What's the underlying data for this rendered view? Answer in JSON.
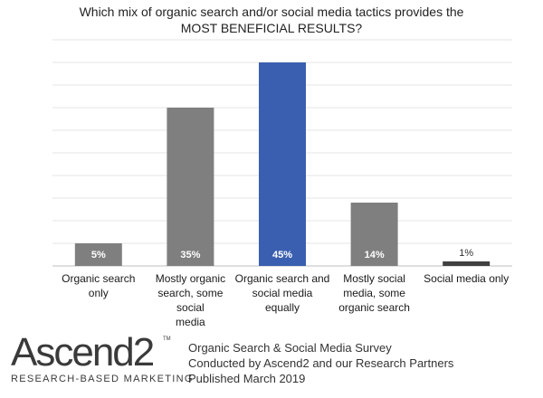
{
  "chart_data": {
    "type": "bar",
    "title": [
      "Which mix of organic search and/or social media tactics provides the",
      "MOST BENEFICIAL RESULTS?"
    ],
    "categories": [
      [
        "Organic search only"
      ],
      [
        "Mostly organic",
        "search, some social",
        "media"
      ],
      [
        "Organic search and",
        "social media",
        "equally"
      ],
      [
        "Mostly social",
        "media, some",
        "organic search"
      ],
      [
        "Social media only"
      ]
    ],
    "values": [
      5,
      35,
      45,
      14,
      1
    ],
    "data_labels": [
      "5%",
      "35%",
      "45%",
      "14%",
      "1%"
    ],
    "ylim": [
      0,
      50
    ],
    "grid": true,
    "colors": {
      "default_bar": "#7f7f7f",
      "highlight_bar": "#3a5fb0",
      "small_bar": "#404040",
      "grid": "#e6e6e6",
      "axis": "#bfbfbf",
      "label_inside": "#ffffff",
      "label_outside": "#333333"
    },
    "highlight_index": 2
  },
  "footer": {
    "logo_text": "Ascend2",
    "logo_tm": "TM",
    "logo_tagline": "RESEARCH-BASED MARKETING",
    "survey_lines": [
      "Organic Search & Social Media Survey",
      "Conducted by Ascend2 and our Research Partners",
      "Published March 2019"
    ]
  }
}
